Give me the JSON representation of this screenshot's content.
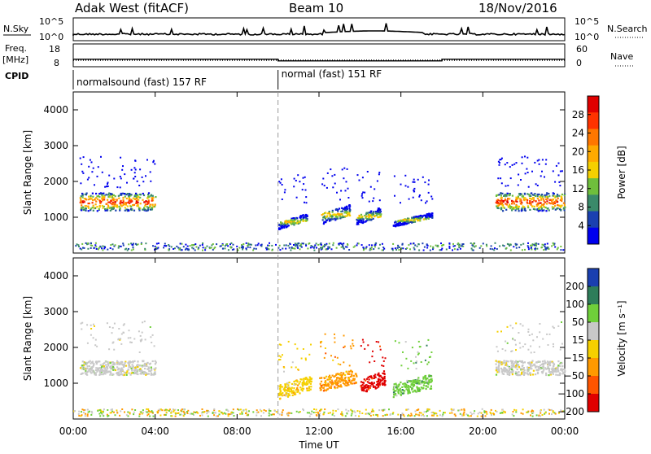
{
  "header": {
    "station": "Adak West (fitACF)",
    "beam": "Beam 10",
    "date": "18/Nov/2016"
  },
  "top_panels": {
    "nsky_label": "N.Sky",
    "nsky_ticks": [
      "10^5",
      "10^0"
    ],
    "nsearch_label": "N.Search",
    "nsearch_ticks": [
      "10^5",
      "10^0"
    ],
    "freq_label_1": "Freq.",
    "freq_label_2": "[MHz]",
    "freq_ticks": [
      "18",
      "8"
    ],
    "nave_label": "Nave",
    "nave_ticks": [
      "60",
      "0"
    ],
    "cpid_label": "CPID",
    "cpid_segments": [
      {
        "label": "normalsound (fast) 157 RF",
        "start": 0,
        "end": 10
      },
      {
        "label": "normal (fast) 151 RF",
        "start": 10,
        "end": 24
      }
    ]
  },
  "panels": {
    "power": {
      "ylabel": "Slant Range [km]",
      "yticks": [
        "4000",
        "3000",
        "2000",
        "1000"
      ],
      "colorbar_label": "Power [dB]",
      "colorbar_ticks": [
        "28",
        "24",
        "20",
        "16",
        "12",
        "8",
        "4"
      ],
      "colors": [
        "#e00000",
        "#ff3300",
        "#ff7700",
        "#ffaa00",
        "#f5d000",
        "#6fbf3c",
        "#3a8a6a",
        "#1a40b0",
        "#0000ee"
      ]
    },
    "velocity": {
      "ylabel": "Slant Range [km]",
      "yticks": [
        "4000",
        "3000",
        "2000",
        "1000"
      ],
      "colorbar_label": "Velocity [m s⁻¹]",
      "colorbar_ticks": [
        "200",
        "100",
        "50",
        "15",
        "−15",
        "−50",
        "−100",
        "−200"
      ],
      "colors": [
        "#1a3fb0",
        "#2e7d5a",
        "#6fcf3a",
        "#c8c8c8",
        "#f5d000",
        "#ff9900",
        "#ff5500",
        "#e00000"
      ]
    }
  },
  "x_axis": {
    "ticks": [
      "00:00",
      "04:00",
      "08:00",
      "12:00",
      "16:00",
      "20:00",
      "00:00"
    ],
    "label": "Time UT"
  },
  "chart_data": {
    "type": "heatmap",
    "x_range_hours": [
      0,
      24
    ],
    "y_range_km": [
      0,
      4500
    ],
    "cpid_change_hour": 10,
    "power_regions": [
      {
        "t_start": 0.3,
        "t_end": 4.0,
        "range_km_center": 1450,
        "range_km_width": 500,
        "power_db_peak": 28
      },
      {
        "t_start": 10.0,
        "t_end": 11.4,
        "range_km_center": 900,
        "range_km_width": 200,
        "power_db_peak": 16
      },
      {
        "t_start": 12.1,
        "t_end": 13.5,
        "range_km_center": 1100,
        "range_km_width": 300,
        "power_db_peak": 20
      },
      {
        "t_start": 13.8,
        "t_end": 15.0,
        "range_km_center": 1050,
        "range_km_width": 250,
        "power_db_peak": 16
      },
      {
        "t_start": 15.6,
        "t_end": 17.5,
        "range_km_center": 950,
        "range_km_width": 150,
        "power_db_peak": 8
      },
      {
        "t_start": 20.6,
        "t_end": 24.0,
        "range_km_center": 1450,
        "range_km_width": 500,
        "power_db_peak": 28
      }
    ],
    "velocity_regions": [
      {
        "t_start": 0.3,
        "t_end": 4.0,
        "range_km_center": 1450,
        "velocity_ms": 0
      },
      {
        "t_start": 10.0,
        "t_end": 11.6,
        "range_km_center": 900,
        "velocity_ms": -30
      },
      {
        "t_start": 12.0,
        "t_end": 13.8,
        "range_km_center": 1100,
        "velocity_ms": -60
      },
      {
        "t_start": 14.0,
        "t_end": 15.2,
        "range_km_center": 1050,
        "velocity_ms": -120
      },
      {
        "t_start": 15.6,
        "t_end": 17.5,
        "range_km_center": 950,
        "velocity_ms": 40
      },
      {
        "t_start": 20.6,
        "t_end": 24.0,
        "range_km_center": 1450,
        "velocity_ms": 0
      }
    ],
    "freq_mhz": [
      {
        "t_start": 0,
        "t_end": 10,
        "value": 10.6
      },
      {
        "t_start": 10,
        "t_end": 18,
        "value": 9.6
      },
      {
        "t_start": 18,
        "t_end": 24,
        "value": 10.6
      }
    ]
  }
}
